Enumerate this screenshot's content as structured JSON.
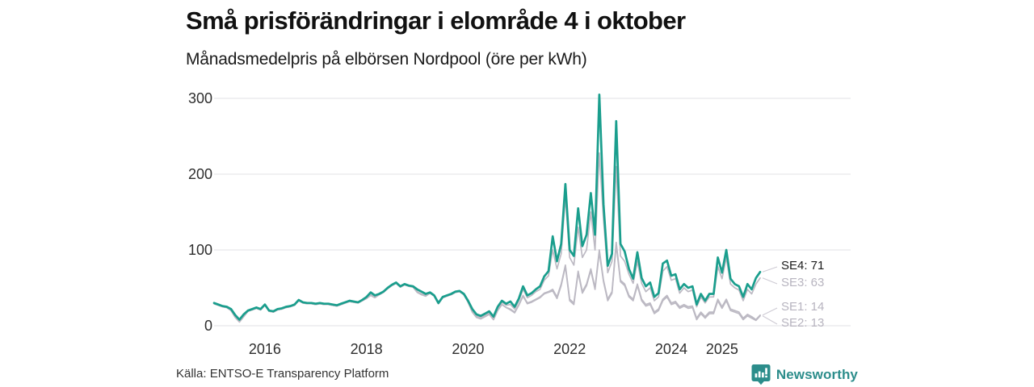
{
  "header": {
    "title": "Små prisförändringar i elområde 4 i oktober",
    "subtitle": "Månadsmedelpris på elbörsen Nordpool (öre per kWh)"
  },
  "footer": {
    "source": "Källa: ENTSO-E Transparency Platform",
    "brand": "Newsworthy"
  },
  "colors": {
    "accent_teal": "#1a9e8d",
    "line_gray": "#bcb9c3",
    "grid": "#e8e6eb",
    "axis_text": "#2e2e2e",
    "label_gray": "#b7b4bf",
    "label_dark": "#1a1a1a",
    "brand_teal": "#2c8d8b",
    "connector": "#cecbd4"
  },
  "chart_data": {
    "type": "line",
    "title": "Små prisförändringar i elområde 4 i oktober",
    "subtitle": "Månadsmedelpris på elbörsen Nordpool (öre per kWh)",
    "unit": "öre per kWh",
    "x_start": "2015-01",
    "x_end": "2025-10",
    "points_per_series": 130,
    "grid": true,
    "legend_position": "right-end-labels",
    "ylim": [
      0,
      310
    ],
    "y_ticks": [
      "0",
      "100",
      "200",
      "300"
    ],
    "x_ticks": [
      {
        "label": "2016",
        "month_index": 12
      },
      {
        "label": "2018",
        "month_index": 36
      },
      {
        "label": "2020",
        "month_index": 60
      },
      {
        "label": "2022",
        "month_index": 84
      },
      {
        "label": "2024",
        "month_index": 108
      },
      {
        "label": "2025",
        "month_index": 120
      }
    ],
    "series": [
      {
        "name": "SE4",
        "end_label": "SE4: 71",
        "last_value": 71,
        "color": "#1a9e8d",
        "values": [
          30,
          28,
          26,
          25,
          22,
          14,
          8,
          15,
          20,
          22,
          24,
          22,
          28,
          20,
          19,
          22,
          23,
          25,
          26,
          28,
          34,
          31,
          30,
          30,
          29,
          30,
          29,
          29,
          28,
          27,
          29,
          31,
          33,
          32,
          31,
          34,
          38,
          44,
          40,
          42,
          45,
          50,
          54,
          57,
          52,
          55,
          53,
          52,
          48,
          45,
          42,
          44,
          40,
          30,
          38,
          40,
          42,
          45,
          46,
          42,
          33,
          22,
          15,
          13,
          16,
          19,
          12,
          25,
          33,
          29,
          32,
          25,
          36,
          52,
          40,
          43,
          48,
          52,
          65,
          72,
          118,
          85,
          108,
          187,
          100,
          92,
          155,
          105,
          120,
          175,
          120,
          305,
          160,
          79,
          95,
          270,
          108,
          98,
          75,
          62,
          97,
          63,
          52,
          57,
          38,
          43,
          82,
          86,
          66,
          68,
          48,
          55,
          50,
          52,
          28,
          42,
          33,
          42,
          42,
          90,
          70,
          100,
          62,
          55,
          52,
          38,
          55,
          48,
          63,
          71
        ]
      },
      {
        "name": "SE3",
        "end_label": "SE3: 63",
        "last_value": 63,
        "color": "#bcb9c3",
        "values": [
          29,
          27,
          25,
          24,
          21,
          12,
          6,
          13,
          19,
          21,
          23,
          21,
          27,
          19,
          18,
          21,
          22,
          24,
          25,
          27,
          33,
          30,
          29,
          29,
          28,
          29,
          28,
          28,
          27,
          26,
          28,
          30,
          32,
          31,
          30,
          33,
          36,
          41,
          38,
          41,
          44,
          49,
          53,
          56,
          51,
          54,
          52,
          51,
          45,
          42,
          40,
          43,
          39,
          29,
          37,
          39,
          41,
          44,
          45,
          41,
          32,
          20,
          13,
          11,
          14,
          17,
          10,
          23,
          31,
          27,
          28,
          22,
          33,
          48,
          37,
          40,
          45,
          48,
          60,
          66,
          100,
          75,
          95,
          170,
          90,
          80,
          130,
          90,
          100,
          150,
          100,
          228,
          140,
          70,
          85,
          210,
          92,
          85,
          68,
          56,
          85,
          56,
          45,
          50,
          33,
          38,
          72,
          78,
          60,
          62,
          43,
          50,
          45,
          47,
          25,
          38,
          30,
          38,
          38,
          78,
          62,
          90,
          55,
          50,
          47,
          33,
          48,
          42,
          55,
          63
        ]
      },
      {
        "name": "SE1",
        "end_label": "SE1: 14",
        "last_value": 14,
        "color": "#bcb9c3",
        "values": [
          29,
          27,
          25,
          24,
          20,
          11,
          5,
          12,
          19,
          21,
          23,
          21,
          27,
          19,
          18,
          21,
          22,
          24,
          25,
          27,
          33,
          30,
          29,
          29,
          28,
          29,
          28,
          28,
          27,
          26,
          28,
          30,
          32,
          31,
          30,
          33,
          36,
          40,
          37,
          41,
          44,
          49,
          53,
          56,
          51,
          54,
          52,
          51,
          44,
          41,
          39,
          43,
          39,
          29,
          37,
          39,
          41,
          44,
          45,
          41,
          31,
          18,
          11,
          9,
          12,
          15,
          8,
          20,
          28,
          24,
          22,
          18,
          28,
          40,
          30,
          32,
          35,
          38,
          43,
          45,
          48,
          38,
          55,
          80,
          35,
          30,
          72,
          45,
          55,
          75,
          50,
          100,
          60,
          35,
          45,
          110,
          60,
          55,
          40,
          35,
          55,
          35,
          28,
          30,
          18,
          22,
          35,
          40,
          30,
          32,
          25,
          28,
          25,
          26,
          10,
          18,
          12,
          18,
          18,
          35,
          25,
          35,
          22,
          20,
          18,
          10,
          15,
          12,
          8,
          14
        ]
      },
      {
        "name": "SE2",
        "end_label": "SE2: 13",
        "last_value": 13,
        "color": "#bcb9c3",
        "values": [
          29,
          27,
          25,
          24,
          20,
          11,
          5,
          12,
          19,
          21,
          23,
          21,
          27,
          19,
          18,
          21,
          22,
          24,
          25,
          27,
          33,
          30,
          29,
          29,
          28,
          29,
          28,
          28,
          27,
          26,
          28,
          30,
          32,
          31,
          30,
          33,
          36,
          40,
          37,
          41,
          44,
          49,
          53,
          56,
          51,
          54,
          52,
          51,
          44,
          41,
          39,
          43,
          39,
          29,
          37,
          39,
          41,
          44,
          45,
          41,
          31,
          18,
          11,
          9,
          12,
          15,
          8,
          20,
          28,
          24,
          21,
          17,
          27,
          39,
          29,
          31,
          34,
          37,
          42,
          44,
          46,
          36,
          53,
          78,
          33,
          28,
          70,
          43,
          53,
          73,
          48,
          97,
          58,
          33,
          43,
          107,
          58,
          53,
          38,
          33,
          53,
          33,
          26,
          28,
          16,
          20,
          33,
          38,
          28,
          30,
          23,
          26,
          23,
          24,
          8,
          16,
          10,
          16,
          16,
          33,
          23,
          33,
          20,
          18,
          16,
          8,
          13,
          10,
          7,
          13
        ]
      }
    ]
  }
}
